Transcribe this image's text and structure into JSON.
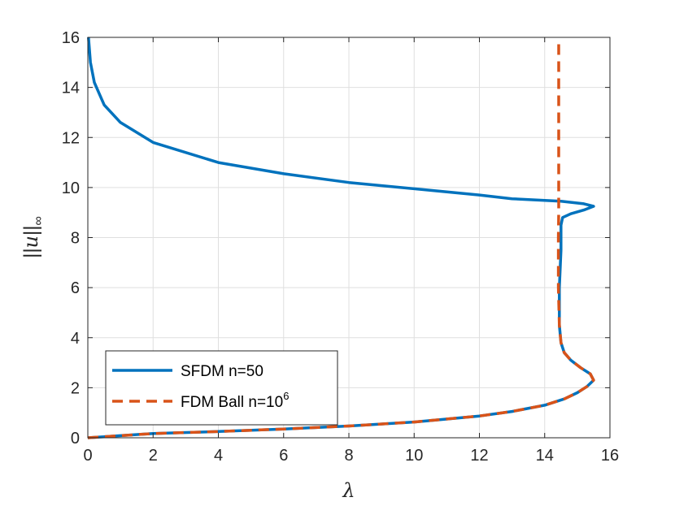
{
  "chart_data": {
    "type": "line",
    "xlabel": "λ",
    "ylabel": "||u||∞",
    "xlim": [
      0,
      16
    ],
    "ylim": [
      0,
      16
    ],
    "x_ticks": [
      "0",
      "2",
      "4",
      "6",
      "8",
      "10",
      "12",
      "14",
      "16"
    ],
    "y_ticks": [
      "0",
      "2",
      "4",
      "6",
      "8",
      "10",
      "12",
      "14",
      "16"
    ],
    "grid": true,
    "legend_position": "bottom-left",
    "series": [
      {
        "name": "SFDM n=50",
        "color": "#0072BD",
        "style": "solid",
        "x": [
          0,
          2,
          4,
          6,
          8,
          10,
          12,
          13,
          14,
          14.6,
          15,
          15.3,
          15.5,
          15.4,
          15.1,
          14.8,
          14.6,
          14.5,
          14.45,
          14.45,
          14.5,
          14.5,
          14.55,
          14.8,
          15.2,
          15.5,
          15.2,
          14.5,
          13,
          12,
          10,
          8,
          6,
          4,
          2,
          1,
          0.5,
          0.2,
          0.08,
          0.02
        ],
        "y": [
          0,
          0.17,
          0.25,
          0.35,
          0.47,
          0.63,
          0.87,
          1.05,
          1.3,
          1.55,
          1.8,
          2.05,
          2.3,
          2.55,
          2.8,
          3.1,
          3.4,
          3.8,
          4.5,
          6.0,
          7.5,
          8.5,
          8.8,
          8.95,
          9.1,
          9.25,
          9.35,
          9.45,
          9.55,
          9.7,
          9.95,
          10.2,
          10.55,
          11.0,
          11.8,
          12.6,
          13.3,
          14.2,
          15.0,
          16.0
        ]
      },
      {
        "name": "FDM Ball n=10^6",
        "color": "#D95319",
        "style": "dashed",
        "x": [
          0,
          2,
          4,
          6,
          8,
          10,
          12,
          13,
          14,
          14.6,
          15,
          15.3,
          15.5,
          15.4,
          15.1,
          14.8,
          14.6,
          14.5,
          14.45,
          14.42,
          14.42,
          14.43,
          14.43
        ],
        "y": [
          0,
          0.17,
          0.25,
          0.35,
          0.47,
          0.63,
          0.87,
          1.05,
          1.3,
          1.55,
          1.8,
          2.05,
          2.3,
          2.55,
          2.8,
          3.1,
          3.4,
          3.8,
          4.5,
          6.0,
          8.0,
          9.0,
          16.0
        ]
      }
    ]
  },
  "legend": {
    "items": [
      {
        "label": "SFDM n=50"
      },
      {
        "label": "FDM Ball n=10",
        "superscript": "6"
      }
    ]
  },
  "axes": {
    "x_label": "λ",
    "y_label_var": "u",
    "y_label_sub": "∞"
  }
}
